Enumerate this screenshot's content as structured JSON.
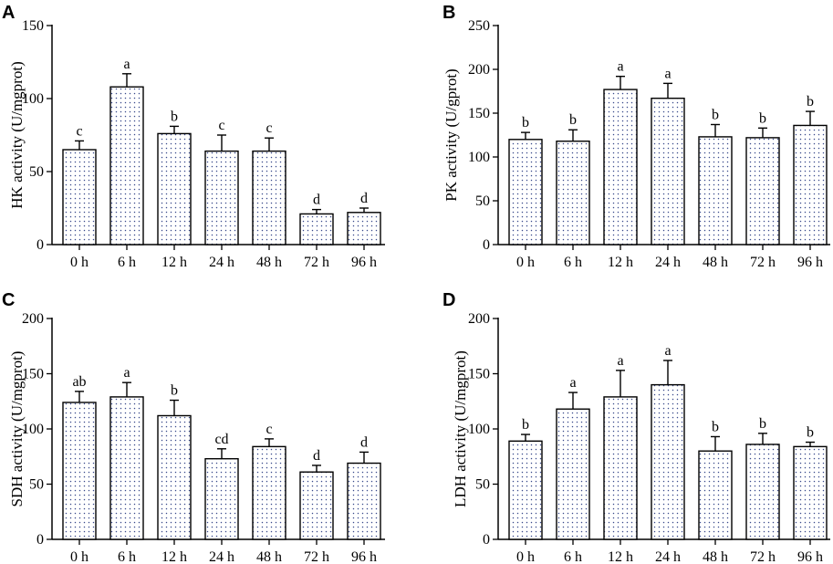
{
  "chart_data": [
    {
      "panel": "A",
      "type": "bar",
      "ylabel": "HK activity (U/mgprot)",
      "categories": [
        "0 h",
        "6 h",
        "12 h",
        "24 h",
        "48 h",
        "72 h",
        "96 h"
      ],
      "values": [
        65,
        108,
        76,
        64,
        64,
        21,
        22
      ],
      "errors": [
        6,
        9,
        5,
        11,
        9,
        3,
        3
      ],
      "letters": [
        "c",
        "a",
        "b",
        "c",
        "c",
        "d",
        "d"
      ],
      "ylim": [
        0,
        150
      ],
      "yticks": [
        0,
        50,
        100,
        150
      ]
    },
    {
      "panel": "B",
      "type": "bar",
      "ylabel": "PK activity (U/gprot)",
      "categories": [
        "0 h",
        "6 h",
        "12 h",
        "24 h",
        "48 h",
        "72 h",
        "96 h"
      ],
      "values": [
        120,
        118,
        177,
        167,
        123,
        122,
        136
      ],
      "errors": [
        8,
        13,
        15,
        17,
        14,
        11,
        16
      ],
      "letters": [
        "b",
        "b",
        "a",
        "a",
        "b",
        "b",
        "b"
      ],
      "ylim": [
        0,
        250
      ],
      "yticks": [
        0,
        50,
        100,
        150,
        200,
        250
      ]
    },
    {
      "panel": "C",
      "type": "bar",
      "ylabel": "SDH activity (U/mgprot)",
      "categories": [
        "0 h",
        "6 h",
        "12 h",
        "24 h",
        "48 h",
        "72 h",
        "96 h"
      ],
      "values": [
        124,
        129,
        112,
        73,
        84,
        61,
        69
      ],
      "errors": [
        10,
        13,
        14,
        9,
        7,
        6,
        10
      ],
      "letters": [
        "ab",
        "a",
        "b",
        "cd",
        "c",
        "d",
        "d"
      ],
      "ylim": [
        0,
        200
      ],
      "yticks": [
        0,
        50,
        100,
        150,
        200
      ]
    },
    {
      "panel": "D",
      "type": "bar",
      "ylabel": "LDH activity (U/mgprot)",
      "categories": [
        "0 h",
        "6 h",
        "12 h",
        "24 h",
        "48 h",
        "72 h",
        "96 h"
      ],
      "values": [
        89,
        118,
        129,
        140,
        80,
        86,
        84
      ],
      "errors": [
        6,
        15,
        24,
        22,
        13,
        10,
        4
      ],
      "letters": [
        "b",
        "a",
        "a",
        "a",
        "b",
        "b",
        "b"
      ],
      "ylim": [
        0,
        200
      ],
      "yticks": [
        0,
        50,
        100,
        150,
        200
      ]
    }
  ]
}
